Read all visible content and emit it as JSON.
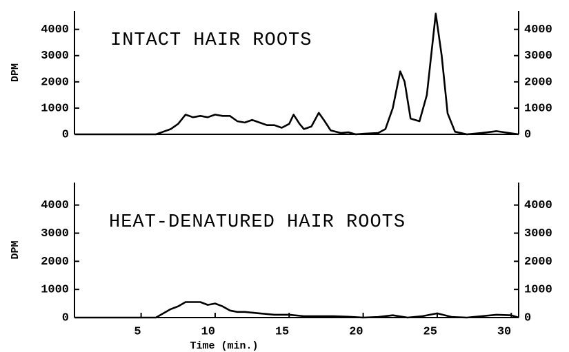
{
  "chart_data": [
    {
      "type": "line",
      "title": "INTACT HAIR ROOTS",
      "ylabel": "DPM",
      "color": "#000000",
      "xlim": [
        0.5,
        30.5
      ],
      "ylim": [
        0,
        4700
      ],
      "yticks": [
        0,
        1000,
        2000,
        3000,
        4000
      ],
      "y2lim": [
        0,
        4700
      ],
      "y2ticks": [
        0,
        1000,
        2000,
        3000,
        4000
      ],
      "x": [
        0.5,
        6,
        6.5,
        7,
        7.5,
        8,
        8.5,
        9,
        9.5,
        10,
        10.5,
        11,
        11.5,
        12,
        12.5,
        13,
        13.5,
        14,
        14.5,
        15,
        15.3,
        15.7,
        16,
        16.5,
        17,
        17.4,
        17.8,
        18.5,
        19,
        19.5,
        20,
        21,
        21.5,
        22,
        22.5,
        22.8,
        23.2,
        23.8,
        24.3,
        24.9,
        25.3,
        25.7,
        26.2,
        27,
        28,
        29,
        30,
        30.5
      ],
      "values": [
        0,
        0,
        100,
        200,
        400,
        750,
        650,
        700,
        650,
        750,
        700,
        700,
        500,
        450,
        550,
        450,
        350,
        350,
        250,
        400,
        750,
        400,
        200,
        300,
        820,
        500,
        150,
        50,
        80,
        0,
        20,
        50,
        200,
        1000,
        2400,
        2000,
        600,
        500,
        1500,
        4600,
        3000,
        800,
        100,
        0,
        50,
        120,
        40,
        0
      ]
    },
    {
      "type": "line",
      "title": "HEAT-DENATURED HAIR ROOTS",
      "ylabel": "DPM",
      "xlabel": "Time (min.)",
      "color": "#000000",
      "xlim": [
        0.5,
        30.5
      ],
      "xticks": [
        5,
        10,
        15,
        20,
        25,
        30
      ],
      "ylim": [
        0,
        4800
      ],
      "yticks": [
        0,
        1000,
        2000,
        3000,
        4000
      ],
      "y2lim": [
        0,
        4800
      ],
      "y2ticks": [
        0,
        1000,
        2000,
        3000,
        4000
      ],
      "x": [
        0.5,
        6,
        6.5,
        7,
        7.5,
        8,
        8.5,
        9,
        9.5,
        10,
        10.5,
        11,
        11.5,
        12,
        13,
        14,
        15,
        16,
        17,
        18,
        19,
        20,
        21,
        22,
        23,
        24,
        25,
        26,
        27,
        28,
        29,
        30,
        30.5
      ],
      "values": [
        0,
        0,
        150,
        300,
        400,
        550,
        550,
        550,
        450,
        500,
        400,
        250,
        200,
        200,
        150,
        100,
        100,
        50,
        50,
        50,
        30,
        0,
        20,
        80,
        0,
        50,
        150,
        20,
        0,
        50,
        100,
        80,
        0
      ]
    }
  ]
}
